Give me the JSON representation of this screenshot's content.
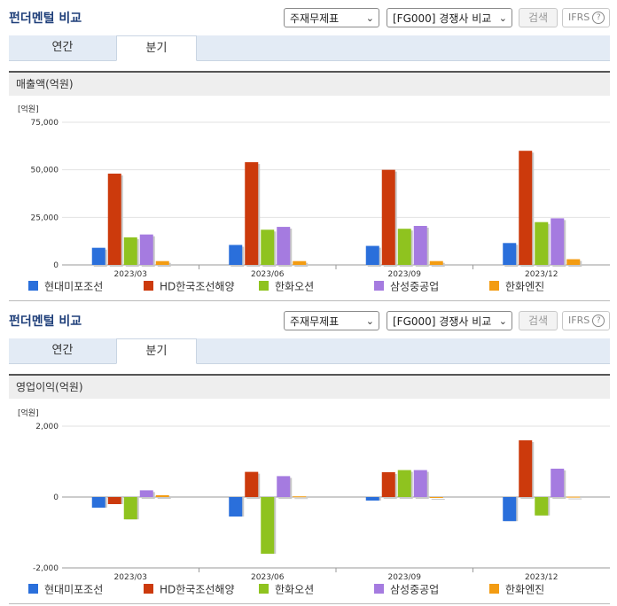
{
  "panels": [
    {
      "title": "펀더멘털 비교",
      "select1": "주재무제표",
      "select2": "[FG000] 경쟁사 비교",
      "search_label": "검색",
      "ifrs_label": "IFRS",
      "tabs": [
        "연간",
        "분기"
      ],
      "active_tab": 1,
      "subtitle": "매출액(억원)"
    },
    {
      "title": "펀더멘털 비교",
      "select1": "주재무제표",
      "select2": "[FG000] 경쟁사 비교",
      "search_label": "검색",
      "ifrs_label": "IFRS",
      "tabs": [
        "연간",
        "분기"
      ],
      "active_tab": 1,
      "subtitle": "영업이익(억원)"
    }
  ],
  "chart_data": [
    {
      "type": "bar",
      "title": "매출액(억원)",
      "unit_label": "[억원]",
      "categories": [
        "2023/03",
        "2023/06",
        "2023/09",
        "2023/12"
      ],
      "ylim": [
        0,
        75000
      ],
      "yticks": [
        0,
        25000,
        50000,
        75000
      ],
      "ytick_labels": [
        "0",
        "25,000",
        "50,000",
        "75,000"
      ],
      "grid": true,
      "legend_position": "bottom",
      "series": [
        {
          "name": "현대미포조선",
          "color": "#2a6fdb",
          "values": [
            9000,
            10500,
            10000,
            11500
          ]
        },
        {
          "name": "HD한국조선해양",
          "color": "#cc3a0c",
          "values": [
            48000,
            54000,
            50000,
            60000
          ]
        },
        {
          "name": "한화오션",
          "color": "#8fc31f",
          "values": [
            14500,
            18500,
            19000,
            22500
          ]
        },
        {
          "name": "삼성중공업",
          "color": "#a57be0",
          "values": [
            16000,
            20000,
            20500,
            24500
          ]
        },
        {
          "name": "한화엔진",
          "color": "#f39c12",
          "values": [
            2000,
            2000,
            2000,
            3000
          ]
        }
      ]
    },
    {
      "type": "bar",
      "title": "영업이익(억원)",
      "unit_label": "[억원]",
      "categories": [
        "2023/03",
        "2023/06",
        "2023/09",
        "2023/12"
      ],
      "ylim": [
        -2000,
        2000
      ],
      "yticks": [
        -2000,
        0,
        2000
      ],
      "ytick_labels": [
        "-2,000",
        "0",
        "2,000"
      ],
      "grid": true,
      "legend_position": "bottom",
      "series": [
        {
          "name": "현대미포조선",
          "color": "#2a6fdb",
          "values": [
            -300,
            -550,
            -100,
            -680
          ]
        },
        {
          "name": "HD한국조선해양",
          "color": "#cc3a0c",
          "values": [
            -200,
            710,
            700,
            1600
          ]
        },
        {
          "name": "한화오션",
          "color": "#8fc31f",
          "values": [
            -630,
            -1600,
            760,
            -520
          ]
        },
        {
          "name": "삼성중공업",
          "color": "#a57be0",
          "values": [
            190,
            590,
            760,
            800
          ]
        },
        {
          "name": "한화엔진",
          "color": "#f39c12",
          "values": [
            50,
            20,
            0,
            10
          ]
        }
      ]
    }
  ]
}
